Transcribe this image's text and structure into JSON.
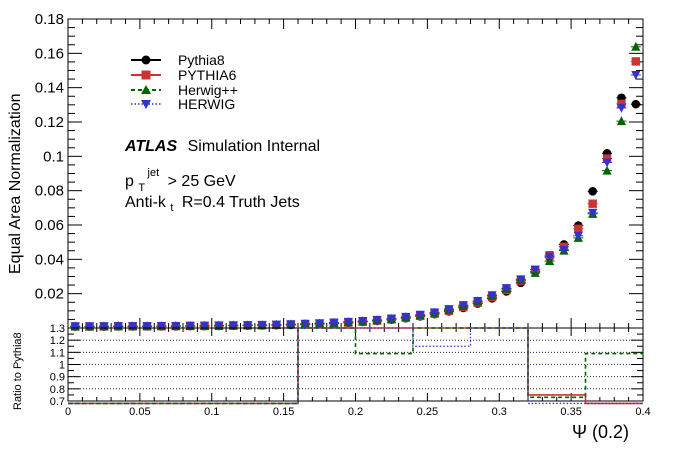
{
  "chart_data": [
    {
      "type": "scatter",
      "ylabel": "Equal Area Normalization",
      "xlabel": "Ψ (0.2)",
      "xlim": [
        0,
        0.4
      ],
      "ylim": [
        0,
        0.18
      ],
      "yticks": [
        "0.18",
        "0.16",
        "0.14",
        "0.12",
        "0.1",
        "0.08",
        "0.06",
        "0.04",
        "0.02"
      ],
      "annotation": {
        "atlas": "ATLAS",
        "atlas_suffix": "Simulation Internal",
        "pt_p": "p",
        "pt_sub": "T",
        "pt_sup": "jet",
        "pt_rest": "> 25 GeV",
        "alg_1": "Anti-k",
        "alg_sub": "t",
        "alg_2": "R=0.4 Truth Jets"
      },
      "legend_position": "top-left",
      "x": [
        0.005,
        0.015,
        0.025,
        0.035,
        0.045,
        0.055,
        0.065,
        0.075,
        0.085,
        0.095,
        0.105,
        0.115,
        0.125,
        0.135,
        0.145,
        0.155,
        0.165,
        0.175,
        0.185,
        0.195,
        0.205,
        0.215,
        0.225,
        0.235,
        0.245,
        0.255,
        0.265,
        0.275,
        0.285,
        0.295,
        0.305,
        0.315,
        0.325,
        0.335,
        0.345,
        0.355,
        0.365,
        0.375,
        0.385,
        0.395
      ],
      "series": [
        {
          "name": "Pythia8",
          "color": "#000000",
          "marker": "circle",
          "line": "solid",
          "values": [
            0.0008,
            0.0008,
            0.0008,
            0.0009,
            0.0009,
            0.001,
            0.001,
            0.001,
            0.0011,
            0.0011,
            0.0012,
            0.0013,
            0.0014,
            0.0015,
            0.0016,
            0.0018,
            0.002,
            0.0023,
            0.0026,
            0.003,
            0.0035,
            0.0041,
            0.0048,
            0.0057,
            0.0068,
            0.0081,
            0.0097,
            0.0117,
            0.0142,
            0.0173,
            0.0213,
            0.0263,
            0.0328,
            0.0413,
            0.0487,
            0.0597,
            0.0796,
            0.1018,
            0.1341,
            0.1304
          ]
        },
        {
          "name": "PYTHIA6",
          "color": "#cc3333",
          "marker": "square",
          "line": "solid",
          "values": [
            0.0009,
            0.0009,
            0.0009,
            0.001,
            0.001,
            0.001,
            0.0011,
            0.0011,
            0.0012,
            0.0012,
            0.0013,
            0.0014,
            0.0015,
            0.0016,
            0.0018,
            0.002,
            0.0022,
            0.0025,
            0.0028,
            0.0032,
            0.0037,
            0.0043,
            0.005,
            0.006,
            0.0071,
            0.0084,
            0.0101,
            0.0122,
            0.0148,
            0.018,
            0.0221,
            0.0273,
            0.0339,
            0.0424,
            0.0473,
            0.0578,
            0.0724,
            0.0987,
            0.1306,
            0.1553
          ]
        },
        {
          "name": "Herwig++",
          "color": "#006600",
          "marker": "triangle-up",
          "line": "dashed",
          "values": [
            0.0009,
            0.0009,
            0.001,
            0.001,
            0.001,
            0.0011,
            0.0011,
            0.0012,
            0.0012,
            0.0013,
            0.0014,
            0.0015,
            0.0016,
            0.0017,
            0.0019,
            0.0021,
            0.0024,
            0.0026,
            0.003,
            0.0034,
            0.0039,
            0.0045,
            0.0053,
            0.0063,
            0.0074,
            0.0088,
            0.0106,
            0.0128,
            0.0155,
            0.0188,
            0.0229,
            0.0279,
            0.0321,
            0.039,
            0.0451,
            0.0525,
            0.0665,
            0.0917,
            0.1205,
            0.1638
          ]
        },
        {
          "name": "HERWIG",
          "color": "#3333cc",
          "marker": "triangle-down",
          "line": "dotted",
          "values": [
            0.001,
            0.001,
            0.001,
            0.0011,
            0.0011,
            0.0011,
            0.0012,
            0.0012,
            0.0013,
            0.0014,
            0.0015,
            0.0016,
            0.0017,
            0.0018,
            0.002,
            0.0022,
            0.0025,
            0.0028,
            0.0032,
            0.0036,
            0.0041,
            0.0047,
            0.0055,
            0.0065,
            0.0077,
            0.0091,
            0.011,
            0.0133,
            0.0157,
            0.0191,
            0.0232,
            0.0283,
            0.034,
            0.0415,
            0.0455,
            0.0537,
            0.0671,
            0.0964,
            0.1282,
            0.1474
          ]
        }
      ]
    },
    {
      "type": "line",
      "ylabel": "Ratio to Pythia8",
      "xlabel": "Ψ (0.2)",
      "xlim": [
        0,
        0.4
      ],
      "ylim": [
        0.7,
        1.3
      ],
      "yticks": [
        "1.3",
        "1.2",
        "1.1",
        "1",
        "0.9",
        "0.8",
        "0.7"
      ],
      "xticks": [
        "0",
        "0.05",
        "0.1",
        "0.15",
        "0.2",
        "0.25",
        "0.3",
        "0.35",
        "0.4"
      ],
      "bin_edges": [
        0,
        0.04,
        0.08,
        0.12,
        0.16,
        0.2,
        0.24,
        0.28,
        0.32,
        0.36,
        0.4
      ],
      "series": [
        {
          "name": "PYTHIA6",
          "color": "#cc3333",
          "line": "solid",
          "values": [
            0.68,
            0.68,
            0.68,
            0.68,
            1.3,
            1.3,
            1.3,
            1.3,
            0.75,
            0.68
          ]
        },
        {
          "name": "Herwig++",
          "color": "#006600",
          "line": "dashed",
          "values": [
            0.68,
            0.68,
            0.68,
            0.68,
            1.3,
            1.09,
            1.3,
            1.3,
            0.73,
            1.09
          ]
        },
        {
          "name": "HERWIG",
          "color": "#3333cc",
          "line": "dotted",
          "values": [
            0.68,
            0.68,
            0.68,
            0.68,
            1.3,
            1.3,
            1.15,
            1.3,
            0.68,
            0.68
          ]
        }
      ]
    }
  ]
}
